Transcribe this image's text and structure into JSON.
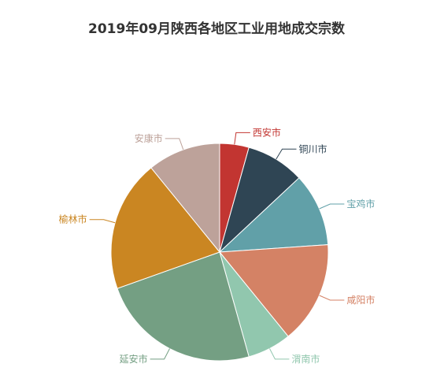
{
  "chart_data": {
    "type": "pie",
    "title": "2019年09月陕西各地区工业用地成交宗数",
    "slices": [
      {
        "name": "西安市",
        "value": 2,
        "color": "#c23531"
      },
      {
        "name": "铜川市",
        "value": 4,
        "color": "#2f4554"
      },
      {
        "name": "宝鸡市",
        "value": 5,
        "color": "#61a0a8"
      },
      {
        "name": "咸阳市",
        "value": 7,
        "color": "#d48265"
      },
      {
        "name": "渭南市",
        "value": 3,
        "color": "#91c7ae"
      },
      {
        "name": "延安市",
        "value": 11,
        "color": "#749f83"
      },
      {
        "name": "榆林市",
        "value": 9,
        "color": "#ca8622"
      },
      {
        "name": "安康市",
        "value": 5,
        "color": "#bda29a"
      }
    ]
  }
}
